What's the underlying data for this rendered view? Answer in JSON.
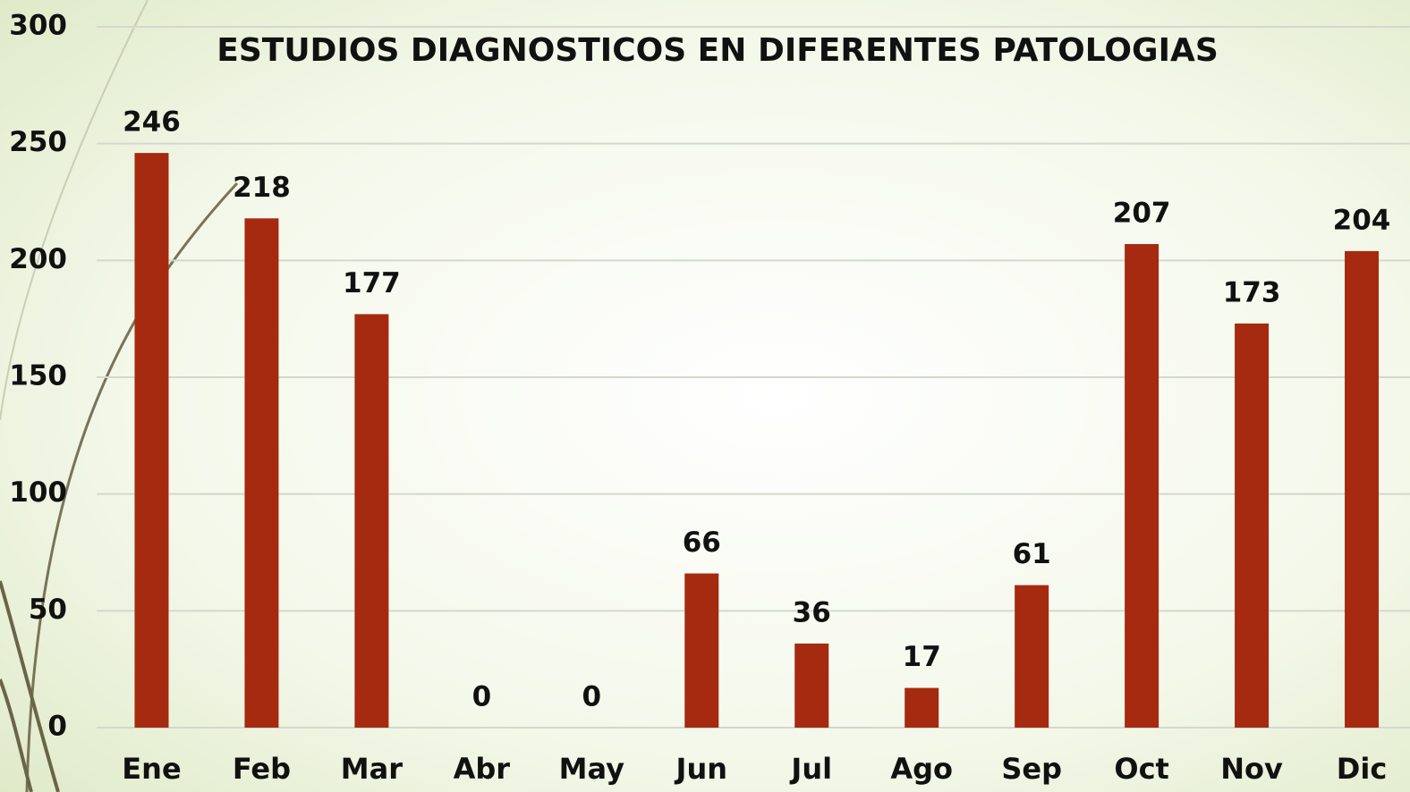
{
  "chart_data": {
    "type": "bar",
    "title": "ESTUDIOS DIAGNOSTICOS EN DIFERENTES PATOLOGIAS",
    "categories": [
      "Ene",
      "Feb",
      "Mar",
      "Abr",
      "May",
      "Jun",
      "Jul",
      "Ago",
      "Sep",
      "Oct",
      "Nov",
      "Dic"
    ],
    "values": [
      246,
      218,
      177,
      0,
      0,
      66,
      36,
      17,
      61,
      207,
      173,
      204
    ],
    "color": "#a52a10",
    "ylim": [
      0,
      300
    ],
    "yticks": [
      0,
      50,
      100,
      150,
      200,
      250,
      300
    ],
    "grid": true
  }
}
